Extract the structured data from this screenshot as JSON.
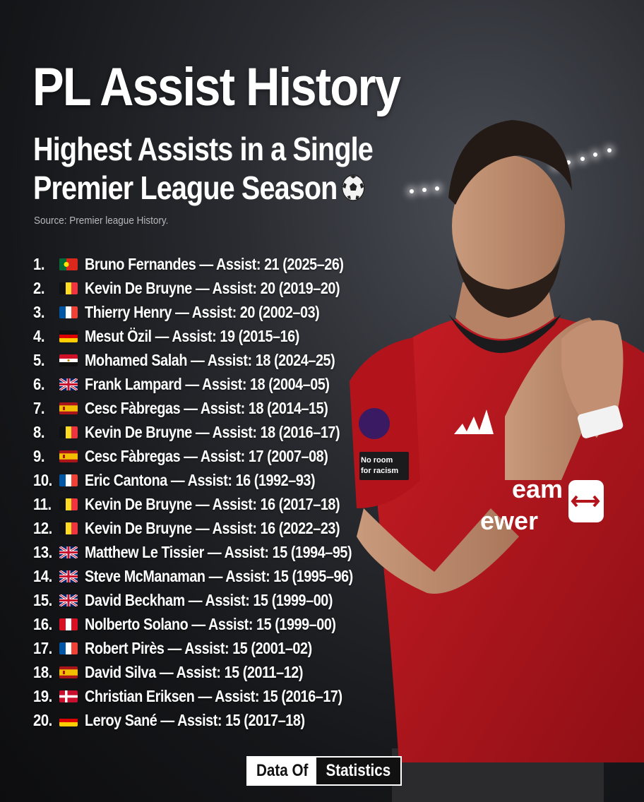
{
  "header": {
    "title": "PL Assist History",
    "subtitle_line1": "Highest Assists in a Single",
    "subtitle_line2": "Premier League Season",
    "source": "Source: Premier league History."
  },
  "ranking": [
    {
      "rank": "1.",
      "flag": "portugal",
      "text": "Bruno Fernandes — Assist: 21 (2025–26)"
    },
    {
      "rank": "2.",
      "flag": "belgium",
      "text": "Kevin De Bruyne — Assist: 20 (2019–20)"
    },
    {
      "rank": "3.",
      "flag": "france",
      "text": "Thierry Henry — Assist: 20 (2002–03)"
    },
    {
      "rank": "4.",
      "flag": "germany",
      "text": "Mesut Özil — Assist: 19 (2015–16)"
    },
    {
      "rank": "5.",
      "flag": "egypt",
      "text": "Mohamed Salah — Assist: 18 (2024–25)"
    },
    {
      "rank": "6.",
      "flag": "uk",
      "text": "Frank Lampard — Assist: 18 (2004–05)"
    },
    {
      "rank": "7.",
      "flag": "spain",
      "text": "Cesc Fàbregas — Assist: 18 (2014–15)"
    },
    {
      "rank": "8.",
      "flag": "belgium",
      "text": "Kevin De Bruyne — Assist: 18 (2016–17)"
    },
    {
      "rank": "9.",
      "flag": "spain",
      "text": "Cesc Fàbregas — Assist: 17 (2007–08)"
    },
    {
      "rank": "10.",
      "flag": "france",
      "text": "Eric Cantona — Assist: 16 (1992–93)"
    },
    {
      "rank": "11.",
      "flag": "belgium",
      "text": "Kevin De Bruyne — Assist: 16 (2017–18)"
    },
    {
      "rank": "12.",
      "flag": "belgium",
      "text": "Kevin De Bruyne — Assist: 16 (2022–23)"
    },
    {
      "rank": "13.",
      "flag": "uk",
      "text": "Matthew Le Tissier — Assist: 15 (1994–95)"
    },
    {
      "rank": "14.",
      "flag": "uk",
      "text": "Steve McManaman — Assist: 15 (1995–96)"
    },
    {
      "rank": "15.",
      "flag": "uk",
      "text": "David Beckham — Assist: 15 (1999–00)"
    },
    {
      "rank": "16.",
      "flag": "peru",
      "text": "Nolberto Solano — Assist: 15 (1999–00)"
    },
    {
      "rank": "17.",
      "flag": "france",
      "text": "Robert Pirès — Assist: 15 (2001–02)"
    },
    {
      "rank": "18.",
      "flag": "spain",
      "text": "David Silva — Assist: 15 (2011–12)"
    },
    {
      "rank": "19.",
      "flag": "denmark",
      "text": "Christian Eriksen — Assist: 15 (2016–17)"
    },
    {
      "rank": "20.",
      "flag": "germany",
      "text": "Leroy Sané — Assist: 15 (2017–18)"
    }
  ],
  "shirt": {
    "sponsor_line1": "eam",
    "sponsor_line2": "ewer",
    "badge_text_line1": "No room",
    "badge_text_line2": "for racism"
  },
  "brand": {
    "part1": "Data Of",
    "part2": "Statistics"
  },
  "colors": {
    "background": "#151619",
    "shirt_red": "#b3141c",
    "text": "#ffffff"
  }
}
